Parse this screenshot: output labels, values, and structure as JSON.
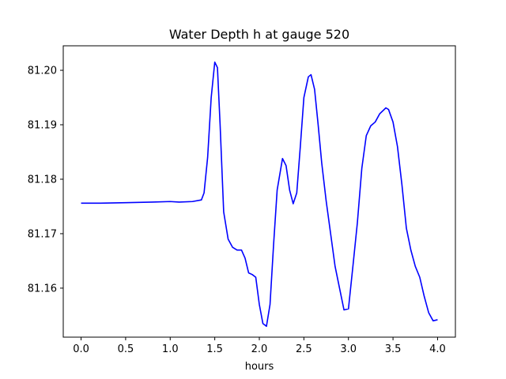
{
  "chart_data": {
    "type": "line",
    "title": "Water Depth h at gauge 520",
    "xlabel": "hours",
    "ylabel": "",
    "xlim": [
      -0.2,
      4.2
    ],
    "ylim": [
      81.151,
      81.2045
    ],
    "x_ticks": [
      0.0,
      0.5,
      1.0,
      1.5,
      2.0,
      2.5,
      3.0,
      3.5,
      4.0
    ],
    "x_tick_labels": [
      "0.0",
      "0.5",
      "1.0",
      "1.5",
      "2.0",
      "2.5",
      "3.0",
      "3.5",
      "4.0"
    ],
    "y_ticks": [
      81.16,
      81.17,
      81.18,
      81.19,
      81.2
    ],
    "y_tick_labels": [
      "81.16",
      "81.17",
      "81.18",
      "81.19",
      "81.20"
    ],
    "grid": false,
    "legend": "none",
    "series": [
      {
        "color": "#0000ff",
        "points": [
          [
            0.0,
            81.1756
          ],
          [
            0.2,
            81.1756
          ],
          [
            0.5,
            81.1757
          ],
          [
            0.8,
            81.1758
          ],
          [
            1.0,
            81.1759
          ],
          [
            1.1,
            81.1758
          ],
          [
            1.25,
            81.1759
          ],
          [
            1.35,
            81.1762
          ],
          [
            1.38,
            81.1775
          ],
          [
            1.42,
            81.184
          ],
          [
            1.46,
            81.195
          ],
          [
            1.5,
            81.2015
          ],
          [
            1.53,
            81.2005
          ],
          [
            1.56,
            81.19
          ],
          [
            1.6,
            81.174
          ],
          [
            1.65,
            81.169
          ],
          [
            1.7,
            81.1675
          ],
          [
            1.75,
            81.167
          ],
          [
            1.8,
            81.167
          ],
          [
            1.84,
            81.1655
          ],
          [
            1.88,
            81.1628
          ],
          [
            1.92,
            81.1625
          ],
          [
            1.96,
            81.162
          ],
          [
            2.0,
            81.157
          ],
          [
            2.04,
            81.1535
          ],
          [
            2.08,
            81.153
          ],
          [
            2.12,
            81.157
          ],
          [
            2.16,
            81.168
          ],
          [
            2.2,
            81.178
          ],
          [
            2.26,
            81.1838
          ],
          [
            2.3,
            81.1825
          ],
          [
            2.34,
            81.178
          ],
          [
            2.38,
            81.1755
          ],
          [
            2.42,
            81.1775
          ],
          [
            2.46,
            81.186
          ],
          [
            2.5,
            81.195
          ],
          [
            2.55,
            81.1988
          ],
          [
            2.58,
            81.1992
          ],
          [
            2.62,
            81.1965
          ],
          [
            2.66,
            81.19
          ],
          [
            2.7,
            81.183
          ],
          [
            2.75,
            81.176
          ],
          [
            2.8,
            81.17
          ],
          [
            2.85,
            81.164
          ],
          [
            2.9,
            81.16
          ],
          [
            2.95,
            81.156
          ],
          [
            3.0,
            81.1562
          ],
          [
            3.05,
            81.164
          ],
          [
            3.1,
            81.172
          ],
          [
            3.15,
            81.182
          ],
          [
            3.2,
            81.188
          ],
          [
            3.25,
            81.1898
          ],
          [
            3.3,
            81.1905
          ],
          [
            3.35,
            81.192
          ],
          [
            3.42,
            81.1931
          ],
          [
            3.45,
            81.1928
          ],
          [
            3.5,
            81.1905
          ],
          [
            3.55,
            81.186
          ],
          [
            3.6,
            81.179
          ],
          [
            3.65,
            81.171
          ],
          [
            3.7,
            81.167
          ],
          [
            3.75,
            81.164
          ],
          [
            3.8,
            81.162
          ],
          [
            3.85,
            81.1585
          ],
          [
            3.9,
            81.1555
          ],
          [
            3.95,
            81.154
          ],
          [
            4.0,
            81.1542
          ]
        ]
      }
    ]
  }
}
